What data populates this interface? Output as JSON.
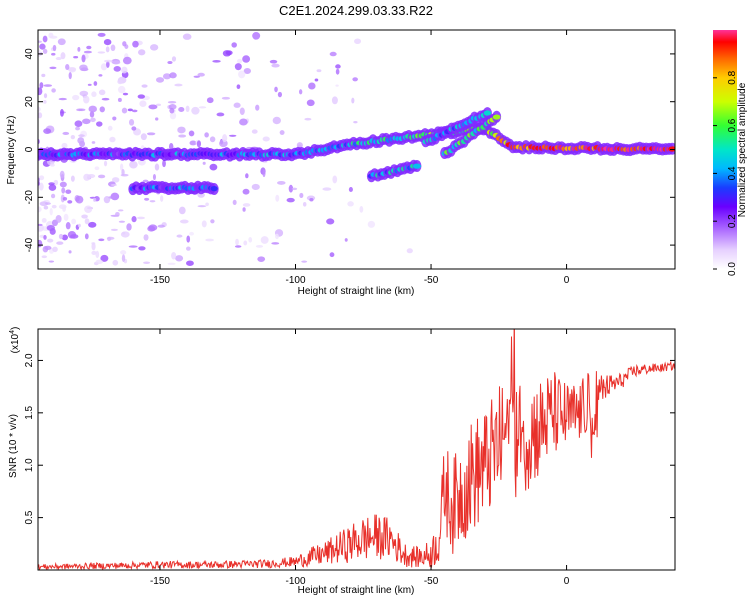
{
  "figure": {
    "title": "C2E1.2024.299.03.33.R22"
  },
  "colors": {
    "snr_line": "#e8302a",
    "frame": "#000000",
    "colormap": [
      "#ffffff",
      "#e6d0ff",
      "#b070ff",
      "#6a00ff",
      "#1a3cff",
      "#00b8ff",
      "#00e6c8",
      "#33ff33",
      "#ccff00",
      "#ffcc00",
      "#ff6600",
      "#ff0000",
      "#ff3399"
    ]
  },
  "chart_data": [
    {
      "type": "heatmap",
      "title": "C2E1.2024.299.03.33.R22",
      "xlabel": "Height of straight line (km)",
      "ylabel": "Frequency (Hz)",
      "xlim": [
        -195,
        40
      ],
      "ylim": [
        -50,
        50
      ],
      "xticks": [
        -150,
        -100,
        -50,
        0
      ],
      "yticks": [
        -40,
        -20,
        0,
        20,
        40
      ],
      "xtick_labels": [
        "-150",
        "-100",
        "-50",
        "0"
      ],
      "ytick_labels": [
        "-40",
        "-20",
        "0",
        "20",
        "40"
      ],
      "colorbar": {
        "label": "Normalized spectral amplitude",
        "range": [
          0,
          1
        ],
        "ticks": [
          0.0,
          0.2,
          0.4,
          0.6,
          0.8
        ],
        "tick_labels": [
          "0.0",
          "0.2",
          "0.4",
          "0.6",
          "0.8"
        ]
      },
      "traces": [
        {
          "x": [
            -195,
            -100,
            -80,
            -60,
            -45,
            -30,
            -20,
            40
          ],
          "y": [
            -2,
            -2,
            2,
            5,
            7,
            9,
            1,
            0
          ],
          "amplitude": [
            0.3,
            0.38,
            0.45,
            0.5,
            0.55,
            0.55,
            0.85,
            0.92
          ]
        },
        {
          "x": [
            -72,
            -55
          ],
          "y": [
            -11,
            -7
          ],
          "amplitude": [
            0.4,
            0.45
          ]
        },
        {
          "x": [
            -52,
            -28
          ],
          "y": [
            3,
            16
          ],
          "amplitude": [
            0.4,
            0.45
          ]
        },
        {
          "x": [
            -45,
            -25
          ],
          "y": [
            -2,
            14
          ],
          "amplitude": [
            0.5,
            0.55
          ]
        },
        {
          "x": [
            -160,
            -130
          ],
          "y": [
            -16,
            -16
          ],
          "amplitude": [
            0.3,
            0.35
          ]
        }
      ]
    },
    {
      "type": "line",
      "title": "",
      "xlabel": "Height of straight line (km)",
      "ylabel": "SNR (10 * v/v)",
      "y_scale_label": "(x10",
      "y_scale_exp": "4",
      "y_scale_close": ")",
      "xlim": [
        -195,
        40
      ],
      "ylim": [
        0,
        23000
      ],
      "xticks": [
        -150,
        -100,
        -50,
        0
      ],
      "yticks": [
        5000,
        10000,
        15000,
        20000
      ],
      "xtick_labels": [
        "-150",
        "-100",
        "-50",
        "0"
      ],
      "ytick_labels": [
        "0.5",
        "1.0",
        "1.5",
        "2.0"
      ],
      "series": [
        {
          "x": [
            -195,
            -170,
            -150,
            -130,
            -110,
            -100,
            -95,
            -90,
            -80,
            -75,
            -70,
            -65,
            -60,
            -55,
            -50,
            -47,
            -45,
            -42,
            -40,
            -35,
            -30,
            -25,
            -20,
            -18,
            -15,
            -10,
            -5,
            0,
            5,
            8,
            10,
            12,
            15,
            20,
            25,
            30,
            35,
            40
          ],
          "y": [
            300,
            400,
            500,
            500,
            600,
            800,
            1200,
            1500,
            2500,
            3000,
            3200,
            3000,
            1500,
            1200,
            1500,
            3000,
            8000,
            6000,
            7000,
            9000,
            10000,
            12000,
            14000,
            12000,
            13000,
            13500,
            15000,
            14500,
            15000,
            16000,
            12000,
            17000,
            17500,
            18000,
            19000,
            19200,
            19300,
            19500
          ],
          "spread": [
            250,
            300,
            350,
            350,
            400,
            500,
            900,
            1100,
            1800,
            2200,
            2200,
            2000,
            1200,
            1000,
            1400,
            2500,
            4500,
            4500,
            5000,
            5500,
            5500,
            5500,
            6000,
            6000,
            5500,
            5000,
            4200,
            3500,
            3000,
            3000,
            3500,
            2000,
            1200,
            800,
            600,
            500,
            400,
            400
          ]
        }
      ]
    }
  ]
}
